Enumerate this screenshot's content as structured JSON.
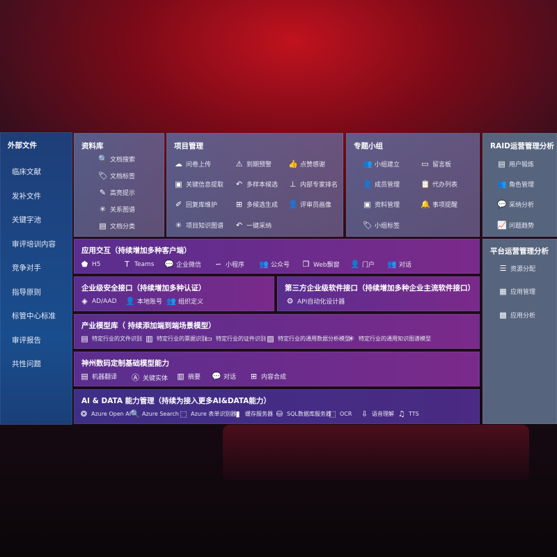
{
  "sidebar": {
    "title": "外部文件",
    "items": [
      "临床文献",
      "发补文件",
      "关键字池",
      "审评培训内容",
      "竞争对手",
      "指导原则",
      "标管中心标准",
      "审评报告",
      "共性问题"
    ]
  },
  "library": {
    "title": "资料库",
    "items": [
      {
        "icon": "doc-search-icon",
        "glyph": "🔍",
        "label": "文档搜索"
      },
      {
        "icon": "tag-icon",
        "glyph": "🏷",
        "label": "文档标签"
      },
      {
        "icon": "pen-icon",
        "glyph": "✎",
        "label": "高亮提示"
      },
      {
        "icon": "graph-icon",
        "glyph": "✳",
        "label": "关系图谱"
      },
      {
        "icon": "doc-category-icon",
        "glyph": "▤",
        "label": "文档分类"
      }
    ]
  },
  "project": {
    "title": "项目管理",
    "items": [
      {
        "icon": "cloud-upload-icon",
        "glyph": "☁",
        "label": "问卷上传"
      },
      {
        "icon": "alarm-icon",
        "glyph": "⚠",
        "label": "到期预警"
      },
      {
        "icon": "thumbs-up-icon",
        "glyph": "👍",
        "label": "点赞感谢"
      },
      {
        "icon": "extract-icon",
        "glyph": "▣",
        "label": "关键信息提取"
      },
      {
        "icon": "reply-icon",
        "glyph": "↶",
        "label": "多样本候选"
      },
      {
        "icon": "rank-icon",
        "glyph": "⊥",
        "label": "内部专家排名"
      },
      {
        "icon": "edit-icon",
        "glyph": "✐",
        "label": "回复库维护"
      },
      {
        "icon": "puzzle-icon",
        "glyph": "⊞",
        "label": "多候选生成"
      },
      {
        "icon": "user-icon",
        "glyph": "👤",
        "label": "评审员画像"
      },
      {
        "icon": "graph-icon",
        "glyph": "✳",
        "label": "项目知识图谱"
      },
      {
        "icon": "reply-icon",
        "glyph": "↶",
        "label": "一键采纳"
      }
    ]
  },
  "group": {
    "title": "专题小组",
    "items": [
      {
        "icon": "group-icon",
        "glyph": "👥",
        "label": "小组建立"
      },
      {
        "icon": "bbs-icon",
        "glyph": "▭",
        "label": "留言板"
      },
      {
        "icon": "member-icon",
        "glyph": "👤",
        "label": "成员管理"
      },
      {
        "icon": "clipboard-icon",
        "glyph": "📋",
        "label": "代办列表"
      },
      {
        "icon": "folder-icon",
        "glyph": "▣",
        "label": "资料管理"
      },
      {
        "icon": "bell-icon",
        "glyph": "🔔",
        "label": "事项提醒"
      },
      {
        "icon": "tag-icon",
        "glyph": "🏷",
        "label": "小组标签"
      }
    ]
  },
  "raid": {
    "title": "RAID运营管理分析",
    "items": [
      {
        "icon": "id-card-icon",
        "glyph": "▤",
        "label": "用户锻炼"
      },
      {
        "icon": "roles-icon",
        "glyph": "👥",
        "label": "角色管理"
      },
      {
        "icon": "qa-icon",
        "glyph": "💬",
        "label": "采纳分析"
      },
      {
        "icon": "trend-icon",
        "glyph": "📈",
        "label": "问题趋势"
      }
    ]
  },
  "platform": {
    "title": "平台运营管理分析",
    "items": [
      {
        "icon": "checklist-icon",
        "glyph": "☰",
        "label": "资源分配"
      },
      {
        "icon": "apps-icon",
        "glyph": "▦",
        "label": "应用管理"
      },
      {
        "icon": "analytics-icon",
        "glyph": "▩",
        "label": "应用分析"
      }
    ]
  },
  "app": {
    "title": "应用交互（持续增加多种客户端）",
    "items": [
      {
        "icon": "html5-icon",
        "glyph": "⬟",
        "label": "H5"
      },
      {
        "icon": "teams-icon",
        "glyph": "T",
        "label": "Teams"
      },
      {
        "icon": "wechat-icon",
        "glyph": "💬",
        "label": "企业微信"
      },
      {
        "icon": "miniprogram-icon",
        "glyph": "∽",
        "label": "小程序"
      },
      {
        "icon": "public-account-icon",
        "glyph": "👥",
        "label": "公众号"
      },
      {
        "icon": "window-icon",
        "glyph": "❐",
        "label": "Web飘窗"
      },
      {
        "icon": "portal-icon",
        "glyph": "👤",
        "label": "门户"
      },
      {
        "icon": "chat-users-icon",
        "glyph": "👥",
        "label": "对话"
      }
    ]
  },
  "security": {
    "title": "企业级安全接口（持续增加多种认证）",
    "items": [
      {
        "icon": "aad-icon",
        "glyph": "◈",
        "label": "AD/AAD"
      },
      {
        "icon": "local-account-icon",
        "glyph": "👤",
        "label": "本地账号"
      },
      {
        "icon": "org-icon",
        "glyph": "👥",
        "label": "组织定义"
      }
    ]
  },
  "thirdparty": {
    "title": "第三方企业级软件接口（持续增加多种企业主流软件接口）",
    "items": [
      {
        "icon": "gear-icon",
        "glyph": "⚙",
        "label": "API自动化设计器"
      }
    ]
  },
  "industry": {
    "title": "产业模型库（ 持续添加端到端场景模型）",
    "items": [
      {
        "icon": "file-icon",
        "glyph": "▤",
        "label": "特定行业的文件识别"
      },
      {
        "icon": "receipt-icon",
        "glyph": "▥",
        "label": "特定行业的票据识别"
      },
      {
        "icon": "id-card-icon",
        "glyph": "▭",
        "label": "特定行业的证件识别"
      },
      {
        "icon": "chart-icon",
        "glyph": "▨",
        "label": "特定行业的通用数据分析模型"
      },
      {
        "icon": "graph-icon",
        "glyph": "✳",
        "label": "特定行业的通用知识图谱模型"
      }
    ]
  },
  "base": {
    "title": "神州数码定制基础模型能力",
    "items": [
      {
        "icon": "translate-icon",
        "glyph": "▤",
        "label": "机器翻译"
      },
      {
        "icon": "entity-icon",
        "glyph": "Ⓐ",
        "label": "关键实体"
      },
      {
        "icon": "summary-icon",
        "glyph": "▥",
        "label": "摘要"
      },
      {
        "icon": "chat-icon",
        "glyph": "💬",
        "label": "对话"
      },
      {
        "icon": "compose-icon",
        "glyph": "⊞",
        "label": "内容合成"
      }
    ]
  },
  "ai": {
    "title": "AI & DATA 能力管理（持续为接入更多AI&DATA能力）",
    "items": [
      {
        "icon": "openai-icon",
        "glyph": "❂",
        "label": "Azure Open AI"
      },
      {
        "icon": "search-doc-icon",
        "glyph": "🔍",
        "label": "Azure Search"
      },
      {
        "icon": "form-recognizer-icon",
        "glyph": "⬚",
        "label": "Azure 表单识别器"
      },
      {
        "icon": "cache-icon",
        "glyph": "▮",
        "label": "缓存服务器"
      },
      {
        "icon": "database-icon",
        "glyph": "⛁",
        "label": "SQL数据库服务器"
      },
      {
        "icon": "ocr-icon",
        "glyph": "⬚",
        "label": "OCR"
      },
      {
        "icon": "speech-icon",
        "glyph": "⇩",
        "label": "语音理解"
      },
      {
        "icon": "tts-icon",
        "glyph": "♫",
        "label": "TTS"
      }
    ]
  }
}
